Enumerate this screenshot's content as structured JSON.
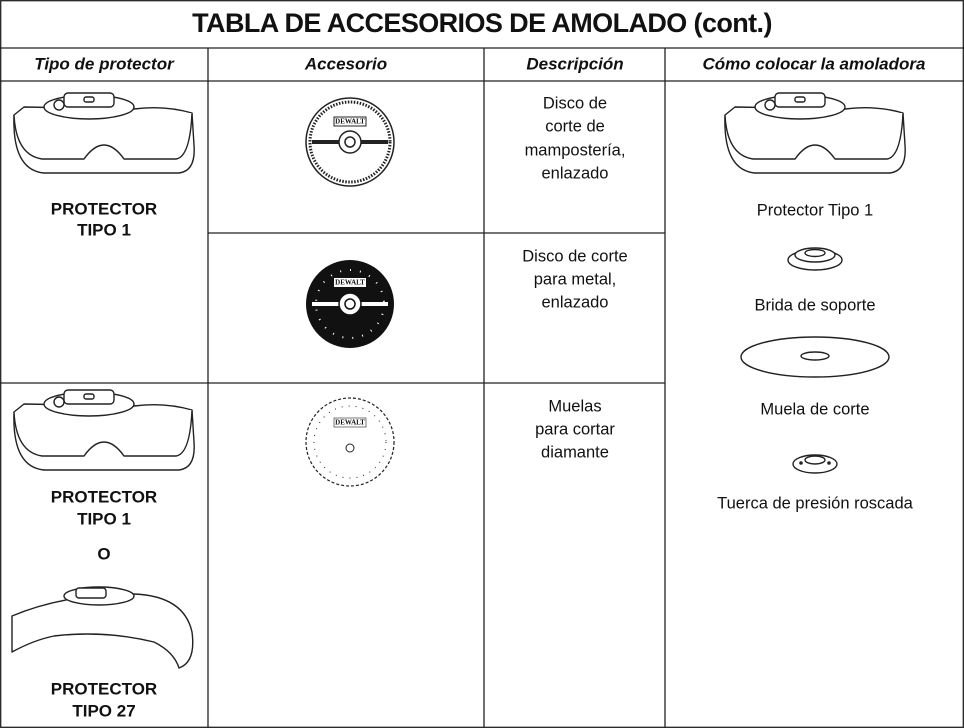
{
  "title": "TABLA DE ACCESORIOS DE AMOLADO (cont.)",
  "headers": [
    "Tipo de protector",
    "Accesorio",
    "Descripción",
    "Cómo colocar la amoladora"
  ],
  "guard_cells": [
    [
      "PROTECTOR",
      "TIPO 1"
    ],
    [
      "PROTECTOR",
      "TIPO 1",
      "O",
      "PROTECTOR",
      "TIPO 27"
    ]
  ],
  "logo": "DEWALT",
  "descriptions": [
    [
      "Disco de",
      "corte de",
      "mampostería,",
      "enlazado"
    ],
    [
      "Disco de corte",
      "para metal,",
      "enlazado"
    ],
    [
      "Muelas",
      "para cortar",
      "diamante"
    ]
  ],
  "mounting": [
    "Protector Tipo 1",
    "Brida de soporte",
    "Muela de corte",
    "Tuerca de presión roscada"
  ]
}
